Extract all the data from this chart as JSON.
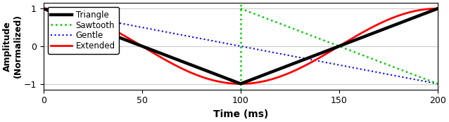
{
  "title": "",
  "xlabel": "Time (ms)",
  "ylabel": "Amplitude\n(Normalized)",
  "xlim": [
    0,
    200
  ],
  "ylim": [
    -1.15,
    1.15
  ],
  "xticks": [
    0,
    50,
    100,
    150,
    200
  ],
  "yticks": [
    -1,
    0,
    1
  ],
  "legend_labels": [
    "Triangle",
    "Sawtooth",
    "Gentle",
    "Extended"
  ],
  "bg_color": "#ffffff",
  "grid_color": "#cccccc",
  "figsize": [
    6.38,
    1.74
  ],
  "dpi": 100
}
